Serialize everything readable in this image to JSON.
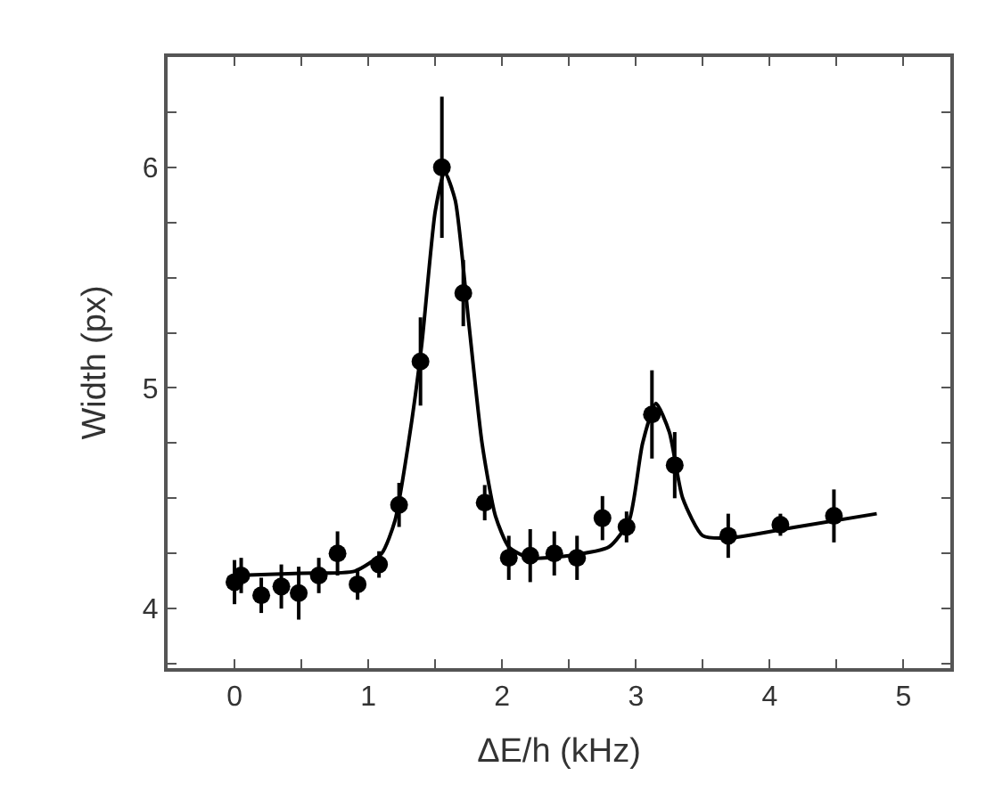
{
  "chart_data": {
    "type": "scatter",
    "xlabel": "ΔE/h (kHz)",
    "ylabel": "Width (px)",
    "xlim": [
      -0.5,
      5.35
    ],
    "xticks": [
      0,
      {
        "value": 0.5,
        "label": null
      },
      1,
      {
        "value": 1.5,
        "label": null
      },
      2,
      {
        "value": 2.5,
        "label": null
      },
      3,
      {
        "value": 3.5,
        "label": null
      },
      4,
      {
        "value": 4.5,
        "label": null
      },
      5
    ],
    "ylim": [
      3.73,
      6.5
    ],
    "yticks": [
      {
        "value": 3.75,
        "label": null
      },
      4,
      {
        "value": 4.25,
        "label": null
      },
      {
        "value": 4.5,
        "label": null
      },
      {
        "value": 4.75,
        "label": null
      },
      5,
      {
        "value": 5.25,
        "label": null
      },
      {
        "value": 5.5,
        "label": null
      },
      {
        "value": 5.75,
        "label": null
      },
      6,
      {
        "value": 6.25,
        "label": null
      }
    ],
    "series": [
      {
        "color": "#000000",
        "marker": "circle",
        "x": [
          0.0,
          0.05,
          0.2,
          0.35,
          0.48,
          0.63,
          0.77,
          0.92,
          1.08,
          1.23,
          1.39,
          1.55,
          1.71,
          1.87,
          2.05,
          2.21,
          2.39,
          2.56,
          2.75,
          2.93,
          3.12,
          3.29,
          3.69,
          4.08,
          4.48
        ],
        "values": [
          4.12,
          4.15,
          4.06,
          4.1,
          4.07,
          4.15,
          4.25,
          4.11,
          4.2,
          4.47,
          5.12,
          6.0,
          5.43,
          4.48,
          4.23,
          4.24,
          4.25,
          4.23,
          4.41,
          4.37,
          4.88,
          4.65,
          4.33,
          4.38,
          4.42
        ],
        "errors": [
          0.1,
          0.08,
          0.08,
          0.1,
          0.12,
          0.08,
          0.1,
          0.07,
          0.06,
          0.1,
          0.2,
          0.32,
          0.15,
          0.08,
          0.1,
          0.12,
          0.1,
          0.1,
          0.1,
          0.07,
          0.2,
          0.15,
          0.1,
          0.05,
          0.12
        ]
      },
      {
        "type": "line",
        "color": "#000000",
        "marker": "none",
        "line_style": "solid",
        "x": [
          0.0,
          0.5,
          0.9,
          1.1,
          1.2,
          1.3,
          1.4,
          1.5,
          1.57,
          1.65,
          1.75,
          1.85,
          1.95,
          2.05,
          2.2,
          2.5,
          2.8,
          2.95,
          3.05,
          3.15,
          3.25,
          3.35,
          3.5,
          3.7,
          4.2,
          4.8
        ],
        "values": [
          4.15,
          4.16,
          4.17,
          4.25,
          4.4,
          4.75,
          5.2,
          5.8,
          5.98,
          5.85,
          5.3,
          4.75,
          4.42,
          4.28,
          4.23,
          4.24,
          4.28,
          4.4,
          4.75,
          4.93,
          4.8,
          4.5,
          4.33,
          4.32,
          4.37,
          4.43
        ]
      }
    ]
  }
}
